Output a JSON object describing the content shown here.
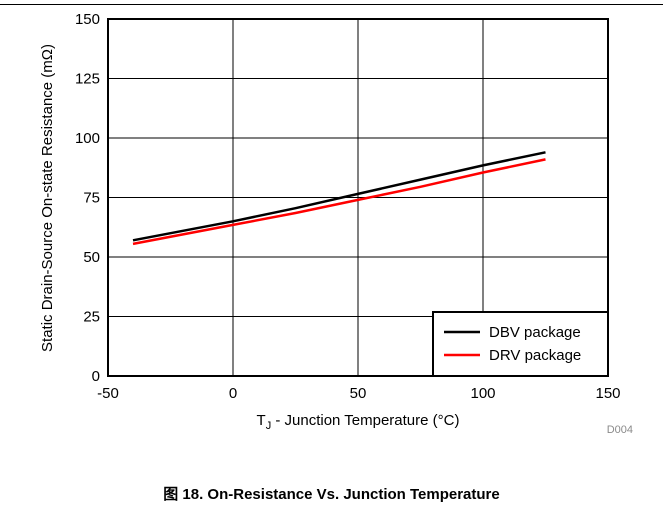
{
  "chart_data": {
    "type": "line",
    "xlabel_main": "T",
    "xlabel_sub": "J",
    "xlabel_rest": " - Junction Temperature (°C)",
    "ylabel": "Static Drain-Source On-state Resistance (mΩ)",
    "xlim": [
      -50,
      150
    ],
    "ylim": [
      0,
      150
    ],
    "xticks": [
      -50,
      0,
      50,
      100,
      150
    ],
    "yticks": [
      0,
      25,
      50,
      75,
      100,
      125,
      150
    ],
    "xtick_labels": [
      "-50",
      "0",
      "50",
      "100",
      "150"
    ],
    "ytick_labels": [
      "0",
      "25",
      "50",
      "75",
      "100",
      "125",
      "150"
    ],
    "grid": true,
    "legend_position": "bottom-right",
    "series": [
      {
        "name": "DBV package",
        "color": "#000000",
        "x": [
          -40,
          -20,
          0,
          25,
          50,
          75,
          100,
          125
        ],
        "y": [
          57,
          61,
          65,
          70.5,
          76.5,
          82.5,
          88.5,
          94
        ]
      },
      {
        "name": "DRV package",
        "color": "#ff0000",
        "x": [
          -40,
          -20,
          0,
          25,
          50,
          75,
          100,
          125
        ],
        "y": [
          55.5,
          59.5,
          63.5,
          68.5,
          74,
          79.5,
          85.5,
          91
        ]
      }
    ],
    "figure_id": "D004"
  },
  "caption": "图 18. On-Resistance Vs. Junction Temperature"
}
